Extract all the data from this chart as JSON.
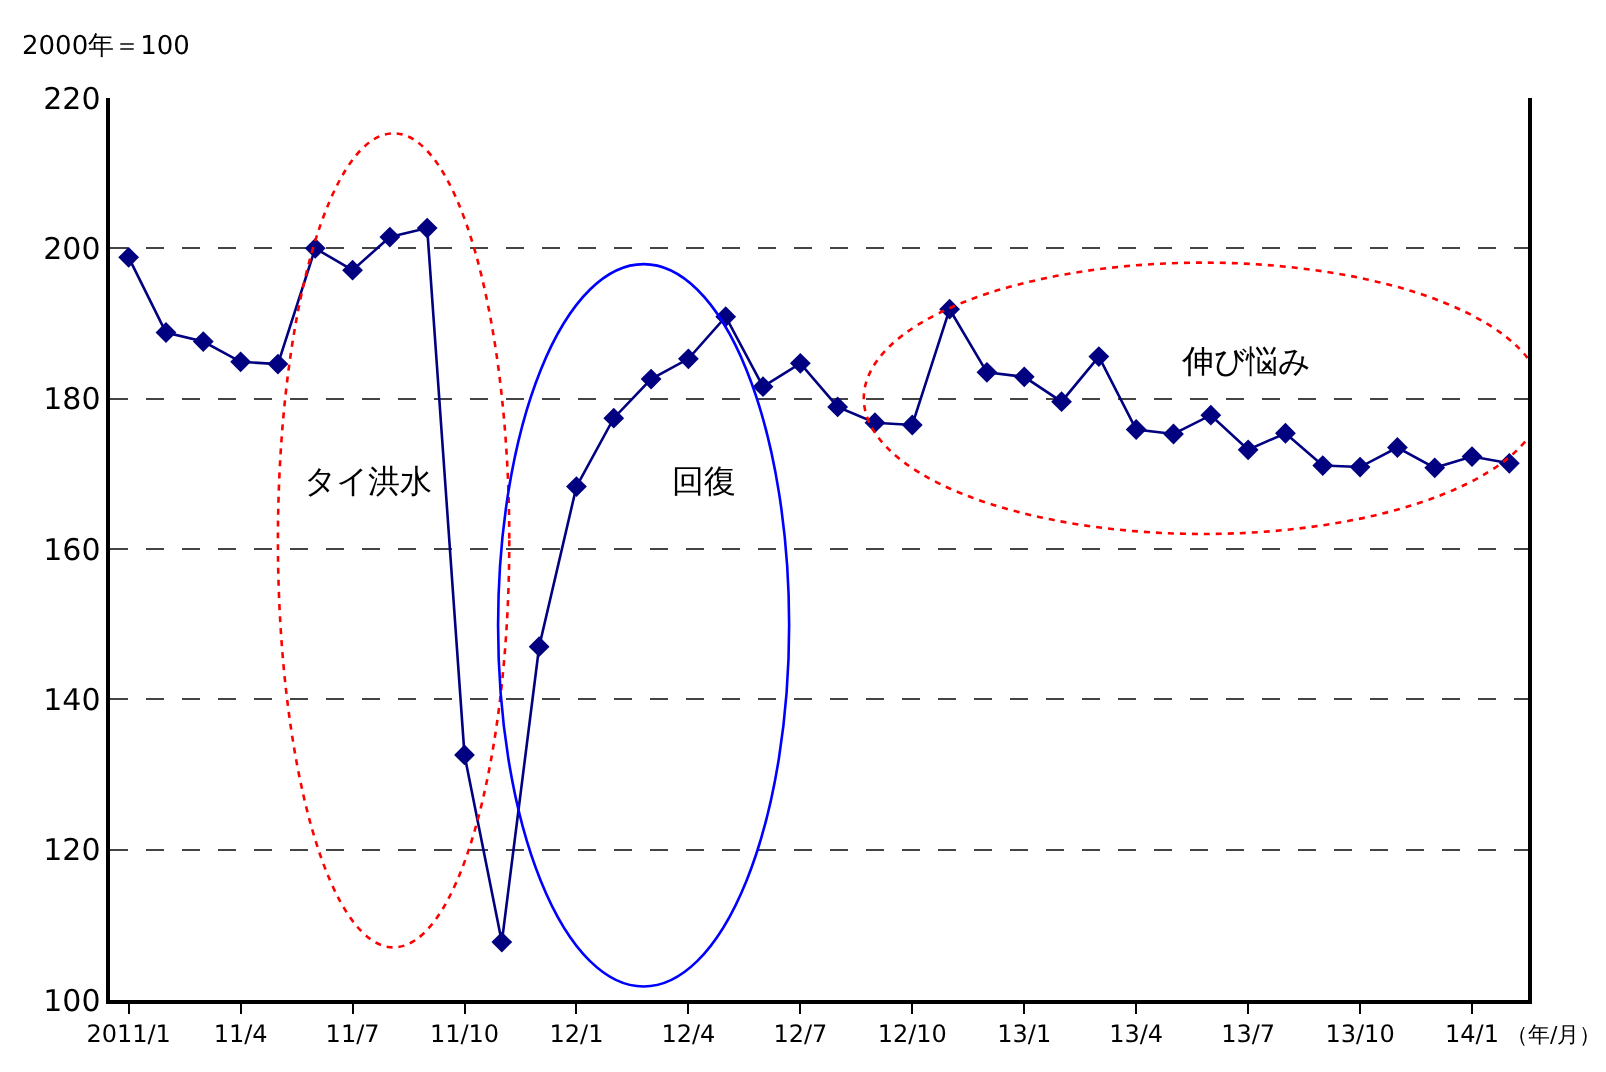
{
  "chart_data": {
    "type": "line",
    "ylabel": "2000年＝100",
    "xlabel": "（年/月）",
    "categories": [
      "2011/1",
      null,
      null,
      "11/4",
      null,
      null,
      "11/7",
      null,
      null,
      "11/10",
      null,
      null,
      "12/1",
      null,
      null,
      "12/4",
      null,
      null,
      "12/7",
      null,
      null,
      "12/10",
      null,
      null,
      "13/1",
      null,
      null,
      "13/4",
      null,
      null,
      "13/7",
      null,
      null,
      "13/10",
      null,
      null,
      "14/1",
      null
    ],
    "series": [
      {
        "color": "#000080",
        "values": [
          198.8,
          188.8,
          187.6,
          184.9,
          184.6,
          200.0,
          197.1,
          201.5,
          202.7,
          132.6,
          107.7,
          147.0,
          168.3,
          177.4,
          182.6,
          185.3,
          190.9,
          181.6,
          184.7,
          178.9,
          176.8,
          176.5,
          191.9,
          183.5,
          182.9,
          179.6,
          185.6,
          175.9,
          175.3,
          177.8,
          173.2,
          175.4,
          171.1,
          170.9,
          173.5,
          170.8,
          172.3,
          171.4
        ]
      }
    ],
    "ylim": [
      100,
      220
    ],
    "yticks": [
      100,
      120,
      140,
      160,
      180,
      200,
      220
    ],
    "grid": "y",
    "marker": "diamond",
    "line_style": "solid",
    "annotations": [
      "タイ洪水",
      "回復",
      "伸び悩み"
    ]
  }
}
